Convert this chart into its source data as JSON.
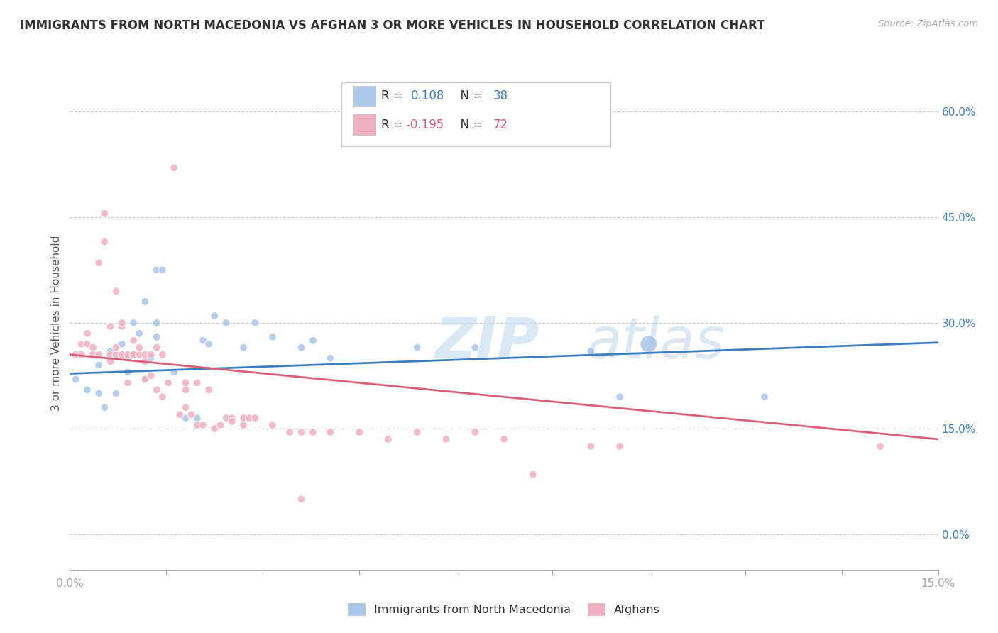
{
  "title": "IMMIGRANTS FROM NORTH MACEDONIA VS AFGHAN 3 OR MORE VEHICLES IN HOUSEHOLD CORRELATION CHART",
  "source": "Source: ZipAtlas.com",
  "ylabel": "3 or more Vehicles in Household",
  "xmin": 0.0,
  "xmax": 0.15,
  "ymin": -0.05,
  "ymax": 0.65,
  "right_yticks": [
    0.0,
    0.15,
    0.3,
    0.45,
    0.6
  ],
  "right_ytick_labels": [
    "0.0%",
    "15.0%",
    "30.0%",
    "45.0%",
    "60.0%"
  ],
  "xtick_labels_show": [
    0.0,
    0.15
  ],
  "blue_color": "#3d7ebf",
  "pink_color": "#d9607a",
  "blue_dot_color": "#aac6e8",
  "pink_dot_color": "#f0b0c0",
  "watermark_zip": "ZIP",
  "watermark_atlas": "atlas",
  "blue_scatter": [
    [
      0.001,
      0.22
    ],
    [
      0.003,
      0.205
    ],
    [
      0.005,
      0.24
    ],
    [
      0.005,
      0.2
    ],
    [
      0.006,
      0.18
    ],
    [
      0.007,
      0.26
    ],
    [
      0.008,
      0.2
    ],
    [
      0.009,
      0.27
    ],
    [
      0.01,
      0.25
    ],
    [
      0.01,
      0.23
    ],
    [
      0.011,
      0.3
    ],
    [
      0.012,
      0.285
    ],
    [
      0.013,
      0.22
    ],
    [
      0.013,
      0.33
    ],
    [
      0.014,
      0.25
    ],
    [
      0.015,
      0.28
    ],
    [
      0.015,
      0.3
    ],
    [
      0.015,
      0.375
    ],
    [
      0.016,
      0.375
    ],
    [
      0.018,
      0.23
    ],
    [
      0.02,
      0.165
    ],
    [
      0.022,
      0.165
    ],
    [
      0.023,
      0.275
    ],
    [
      0.024,
      0.27
    ],
    [
      0.025,
      0.31
    ],
    [
      0.027,
      0.3
    ],
    [
      0.03,
      0.265
    ],
    [
      0.032,
      0.3
    ],
    [
      0.035,
      0.28
    ],
    [
      0.04,
      0.265
    ],
    [
      0.042,
      0.275
    ],
    [
      0.045,
      0.25
    ],
    [
      0.06,
      0.265
    ],
    [
      0.07,
      0.265
    ],
    [
      0.09,
      0.26
    ],
    [
      0.095,
      0.195
    ],
    [
      0.1,
      0.27
    ],
    [
      0.12,
      0.195
    ]
  ],
  "blue_scatter_sizes": [
    60,
    60,
    60,
    60,
    60,
    60,
    60,
    60,
    60,
    60,
    60,
    60,
    60,
    60,
    60,
    60,
    60,
    60,
    60,
    60,
    60,
    60,
    60,
    60,
    60,
    60,
    60,
    60,
    60,
    60,
    60,
    60,
    60,
    60,
    60,
    60,
    300,
    60
  ],
  "blue_trendline": [
    [
      0.0,
      0.228
    ],
    [
      0.15,
      0.272
    ]
  ],
  "pink_scatter": [
    [
      0.001,
      0.255
    ],
    [
      0.002,
      0.27
    ],
    [
      0.002,
      0.255
    ],
    [
      0.003,
      0.27
    ],
    [
      0.003,
      0.285
    ],
    [
      0.004,
      0.265
    ],
    [
      0.004,
      0.255
    ],
    [
      0.005,
      0.385
    ],
    [
      0.005,
      0.255
    ],
    [
      0.006,
      0.415
    ],
    [
      0.006,
      0.455
    ],
    [
      0.007,
      0.255
    ],
    [
      0.007,
      0.295
    ],
    [
      0.007,
      0.245
    ],
    [
      0.008,
      0.255
    ],
    [
      0.008,
      0.265
    ],
    [
      0.008,
      0.345
    ],
    [
      0.009,
      0.255
    ],
    [
      0.009,
      0.295
    ],
    [
      0.009,
      0.3
    ],
    [
      0.01,
      0.215
    ],
    [
      0.01,
      0.255
    ],
    [
      0.011,
      0.275
    ],
    [
      0.011,
      0.255
    ],
    [
      0.011,
      0.255
    ],
    [
      0.012,
      0.255
    ],
    [
      0.012,
      0.265
    ],
    [
      0.013,
      0.255
    ],
    [
      0.013,
      0.245
    ],
    [
      0.013,
      0.22
    ],
    [
      0.014,
      0.225
    ],
    [
      0.014,
      0.255
    ],
    [
      0.015,
      0.265
    ],
    [
      0.015,
      0.205
    ],
    [
      0.016,
      0.255
    ],
    [
      0.016,
      0.195
    ],
    [
      0.017,
      0.215
    ],
    [
      0.018,
      0.52
    ],
    [
      0.019,
      0.17
    ],
    [
      0.02,
      0.205
    ],
    [
      0.02,
      0.215
    ],
    [
      0.02,
      0.18
    ],
    [
      0.021,
      0.17
    ],
    [
      0.022,
      0.155
    ],
    [
      0.022,
      0.215
    ],
    [
      0.023,
      0.155
    ],
    [
      0.024,
      0.205
    ],
    [
      0.025,
      0.15
    ],
    [
      0.026,
      0.155
    ],
    [
      0.027,
      0.165
    ],
    [
      0.028,
      0.165
    ],
    [
      0.028,
      0.16
    ],
    [
      0.03,
      0.155
    ],
    [
      0.03,
      0.165
    ],
    [
      0.031,
      0.165
    ],
    [
      0.032,
      0.165
    ],
    [
      0.035,
      0.155
    ],
    [
      0.038,
      0.145
    ],
    [
      0.04,
      0.145
    ],
    [
      0.04,
      0.05
    ],
    [
      0.042,
      0.145
    ],
    [
      0.045,
      0.145
    ],
    [
      0.05,
      0.145
    ],
    [
      0.055,
      0.135
    ],
    [
      0.06,
      0.145
    ],
    [
      0.065,
      0.135
    ],
    [
      0.07,
      0.145
    ],
    [
      0.075,
      0.135
    ],
    [
      0.08,
      0.085
    ],
    [
      0.09,
      0.125
    ],
    [
      0.095,
      0.125
    ],
    [
      0.14,
      0.125
    ]
  ],
  "pink_scatter_sizes": [
    60,
    60,
    60,
    60,
    60,
    60,
    60,
    60,
    60,
    60,
    60,
    60,
    60,
    60,
    60,
    60,
    60,
    60,
    60,
    60,
    60,
    60,
    60,
    60,
    60,
    60,
    60,
    60,
    60,
    60,
    60,
    60,
    60,
    60,
    60,
    60,
    60,
    60,
    60,
    60,
    60,
    60,
    60,
    60,
    60,
    60,
    60,
    60,
    60,
    60,
    60,
    60,
    60,
    60,
    60,
    60,
    60,
    60,
    60,
    60,
    60,
    60,
    60,
    60,
    60,
    60,
    60,
    60,
    60,
    60,
    60,
    60
  ],
  "pink_trendline": [
    [
      0.0,
      0.255
    ],
    [
      0.15,
      0.135
    ]
  ]
}
